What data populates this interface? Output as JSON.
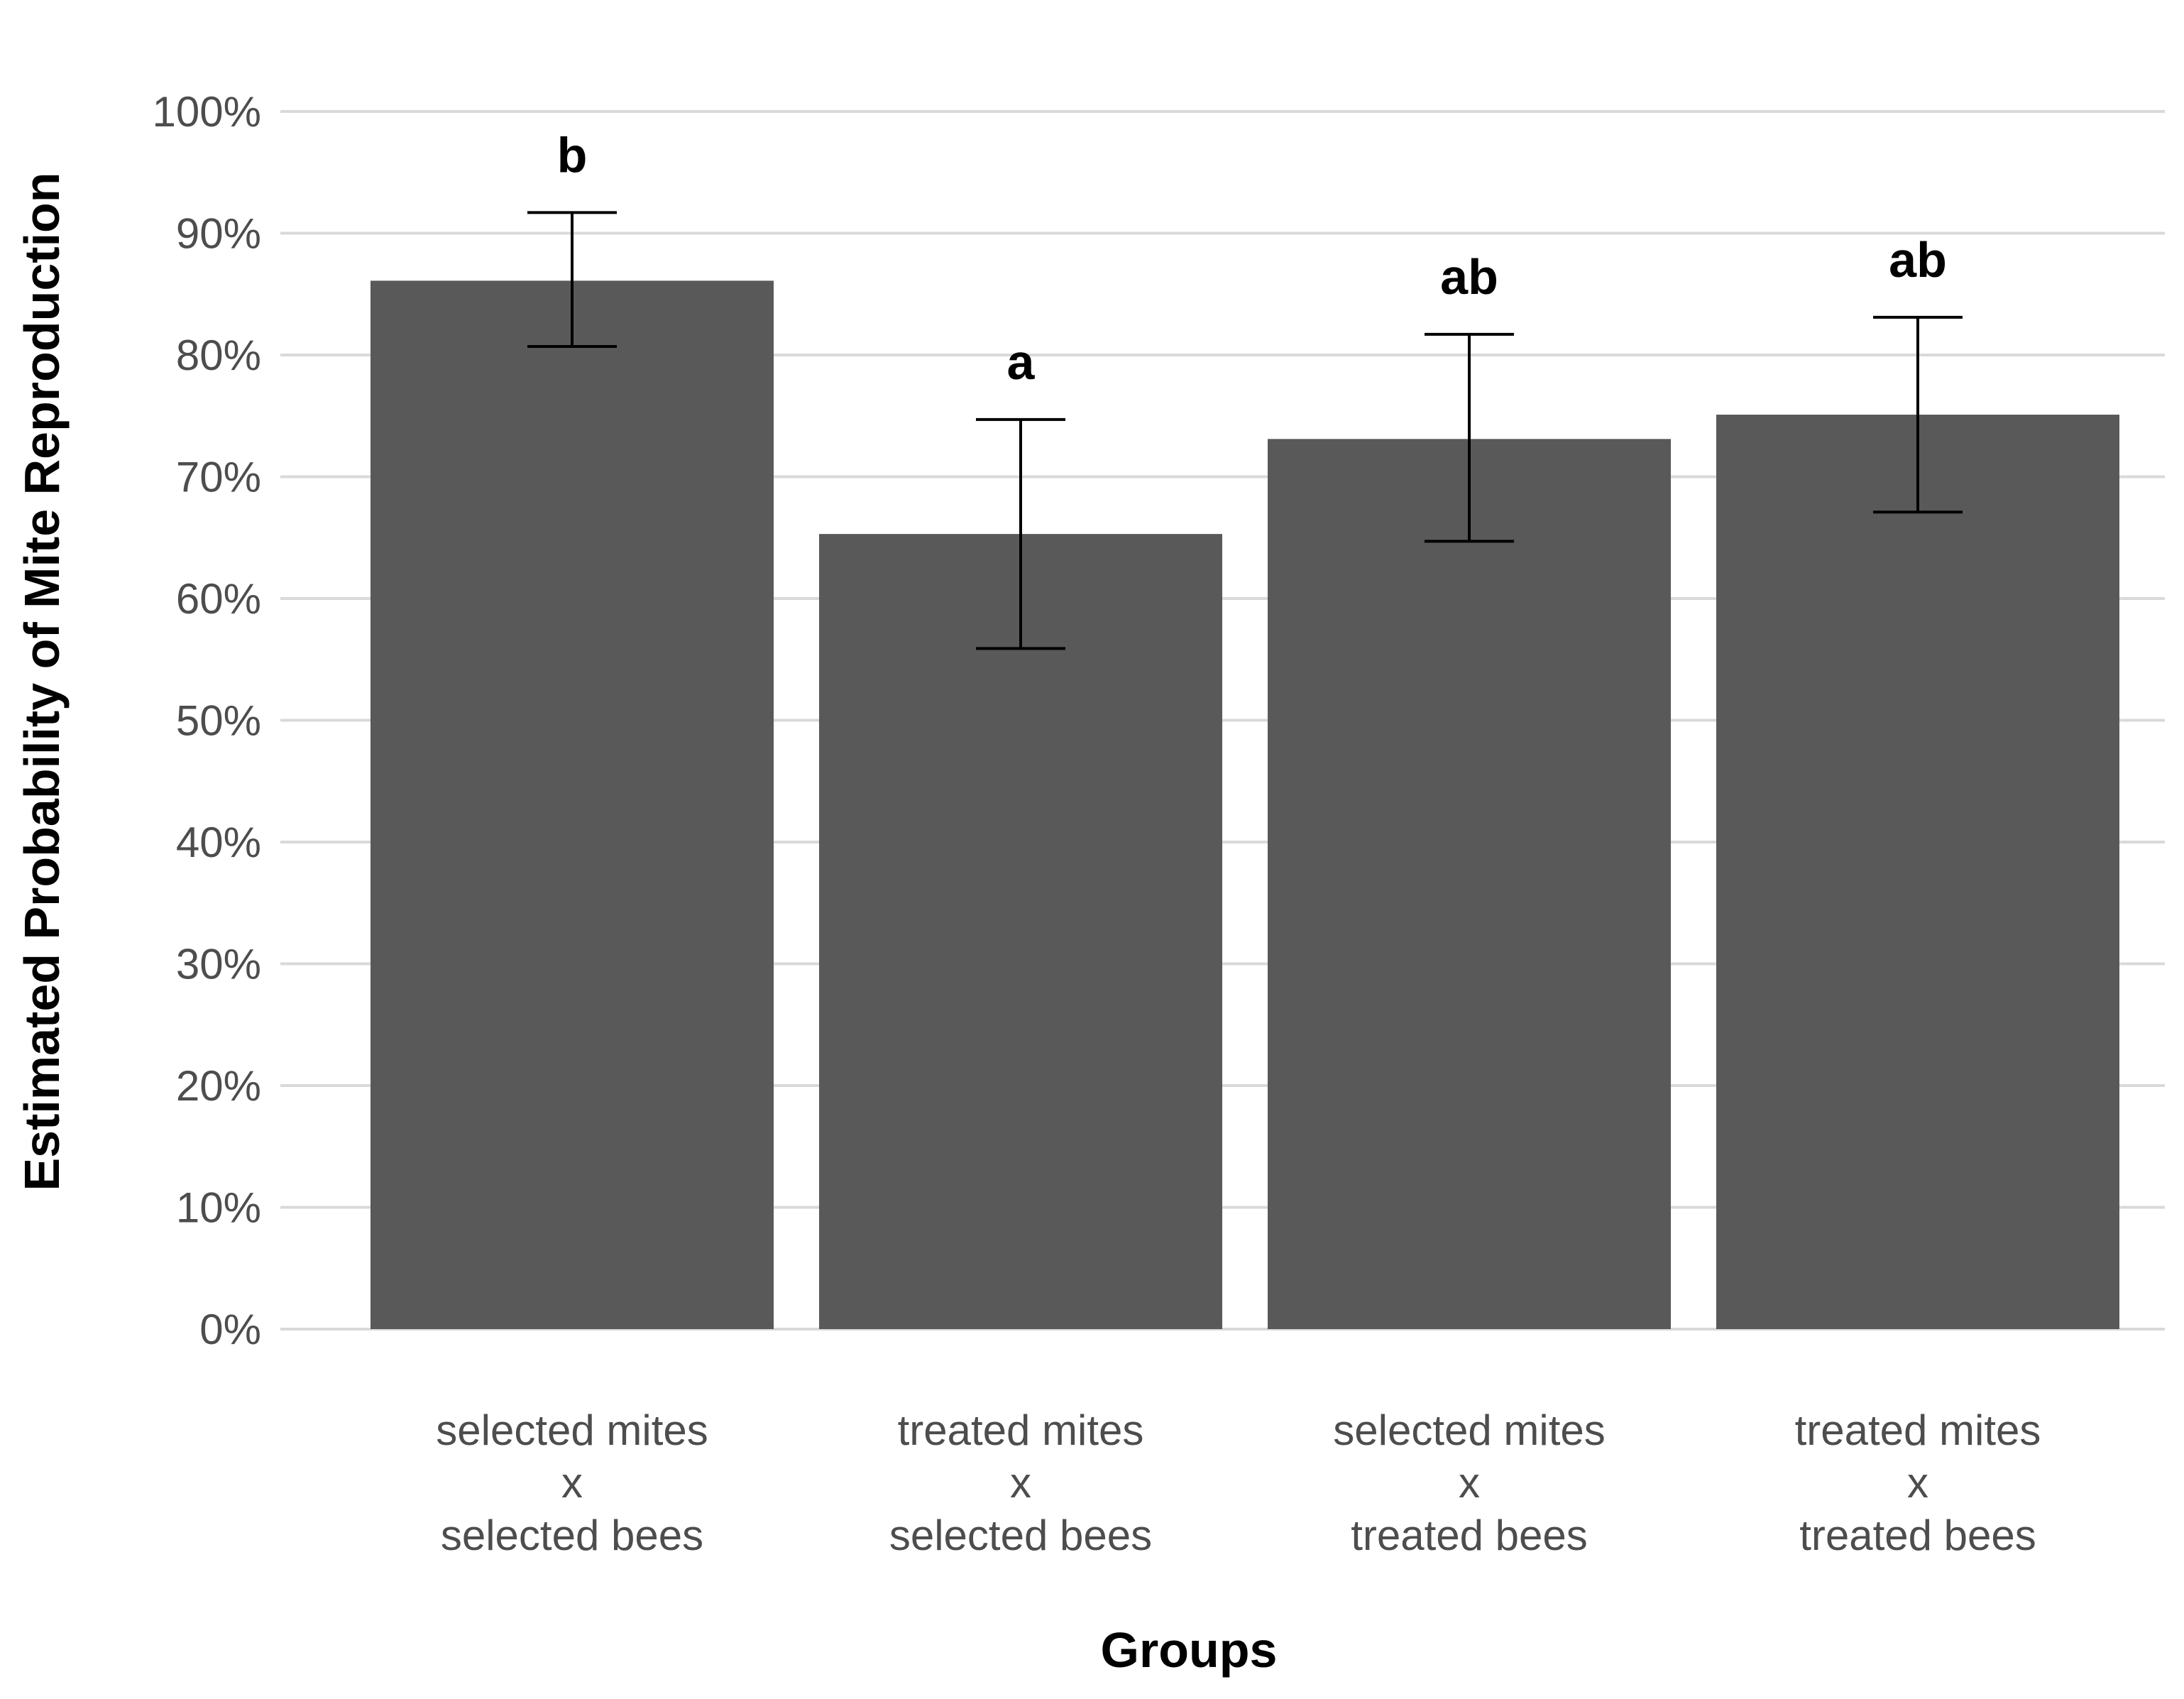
{
  "chart_data": {
    "type": "bar",
    "title": "",
    "xlabel": "Groups",
    "ylabel": "Estimated Probability of Mite Reproduction",
    "ylim": [
      0,
      100
    ],
    "y_ticks": [
      {
        "value": 0,
        "label": "0%"
      },
      {
        "value": 10,
        "label": "10%"
      },
      {
        "value": 20,
        "label": "20%"
      },
      {
        "value": 30,
        "label": "30%"
      },
      {
        "value": 40,
        "label": "40%"
      },
      {
        "value": 50,
        "label": "50%"
      },
      {
        "value": 60,
        "label": "60%"
      },
      {
        "value": 70,
        "label": "70%"
      },
      {
        "value": 80,
        "label": "80%"
      },
      {
        "value": 90,
        "label": "90%"
      },
      {
        "value": 100,
        "label": "100%"
      }
    ],
    "grid": true,
    "bar_color": "#595959",
    "categories": [
      {
        "line1": "selected mites",
        "line2": "x",
        "line3": "selected bees"
      },
      {
        "line1": "treated mites",
        "line2": "x",
        "line3": "selected bees"
      },
      {
        "line1": "selected mites",
        "line2": "x",
        "line3": "treated bees"
      },
      {
        "line1": "treated mites",
        "line2": "x",
        "line3": "treated bees"
      }
    ],
    "values": [
      86.1,
      65.3,
      73.1,
      75.1
    ],
    "error_lower": [
      80.7,
      55.9,
      64.7,
      67.1
    ],
    "error_upper": [
      91.7,
      74.7,
      81.7,
      83.1
    ],
    "significance_letters": [
      "b",
      "a",
      "ab",
      "ab"
    ]
  }
}
